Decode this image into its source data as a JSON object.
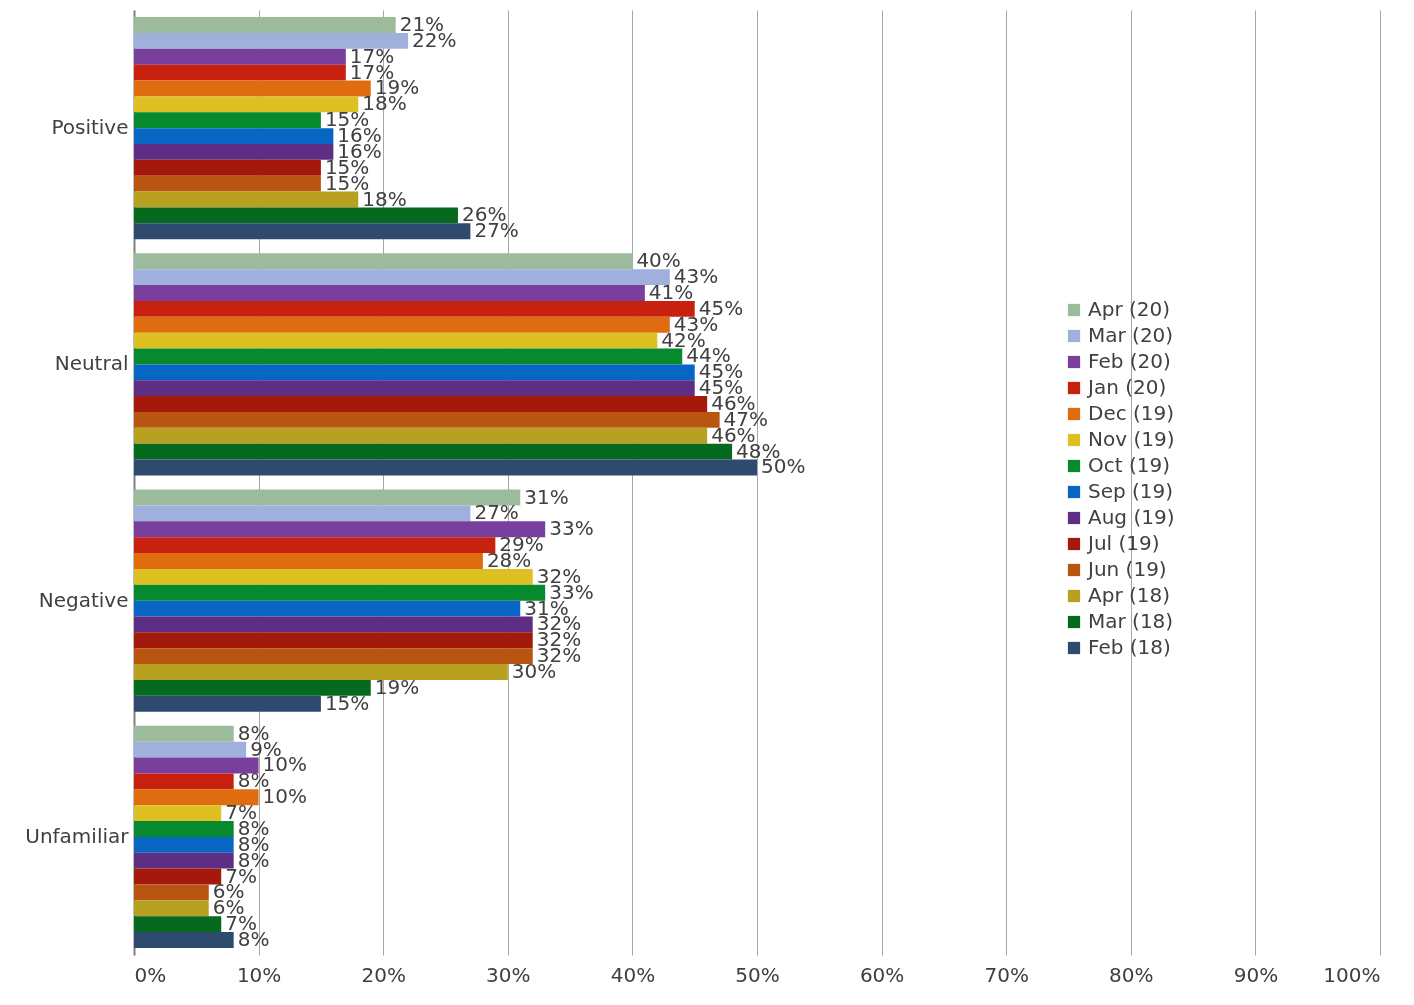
{
  "chart_data": {
    "type": "bar",
    "orientation": "horizontal",
    "categories": [
      "Positive",
      "Neutral",
      "Negative",
      "Unfamiliar"
    ],
    "xlim": [
      0,
      100
    ],
    "xticks": [
      {
        "value": 0,
        "label": "0%"
      },
      {
        "value": 10,
        "label": "10%"
      },
      {
        "value": 20,
        "label": "20%"
      },
      {
        "value": 30,
        "label": "30%"
      },
      {
        "value": 40,
        "label": "40%"
      },
      {
        "value": 50,
        "label": "50%"
      },
      {
        "value": 60,
        "label": "60%"
      },
      {
        "value": 70,
        "label": "70%"
      },
      {
        "value": 80,
        "label": "80%"
      },
      {
        "value": 90,
        "label": "90%"
      },
      {
        "value": 100,
        "label": "100%"
      }
    ],
    "grid": "x",
    "legend": "right",
    "series": [
      {
        "name": "Apr (20)",
        "color": "#9bbb9b",
        "values": [
          21,
          40,
          31,
          8
        ],
        "value_labels": [
          "21%",
          "40%",
          "31%",
          "8%"
        ]
      },
      {
        "name": "Mar (20)",
        "color": "#9fb0dc",
        "values": [
          22,
          43,
          27,
          9
        ],
        "value_labels": [
          "22%",
          "43%",
          "27%",
          "9%"
        ]
      },
      {
        "name": "Feb (20)",
        "color": "#7a3f9d",
        "values": [
          17,
          41,
          33,
          10
        ],
        "value_labels": [
          "17%",
          "41%",
          "33%",
          "10%"
        ]
      },
      {
        "name": "Jan (20)",
        "color": "#c9210f",
        "values": [
          17,
          45,
          29,
          8
        ],
        "value_labels": [
          "17%",
          "45%",
          "29%",
          "8%"
        ]
      },
      {
        "name": "Dec (19)",
        "color": "#e06c10",
        "values": [
          19,
          43,
          28,
          10
        ],
        "value_labels": [
          "19%",
          "43%",
          "28%",
          "10%"
        ]
      },
      {
        "name": "Nov (19)",
        "color": "#dfc022",
        "values": [
          18,
          42,
          32,
          7
        ],
        "value_labels": [
          "18%",
          "42%",
          "32%",
          "7%"
        ]
      },
      {
        "name": "Oct (19)",
        "color": "#078a2e",
        "values": [
          15,
          44,
          33,
          8
        ],
        "value_labels": [
          "15%",
          "44%",
          "33%",
          "8%"
        ]
      },
      {
        "name": "Sep (19)",
        "color": "#0765c4",
        "values": [
          16,
          45,
          31,
          8
        ],
        "value_labels": [
          "16%",
          "45%",
          "31%",
          "8%"
        ]
      },
      {
        "name": "Aug (19)",
        "color": "#5e2d84",
        "values": [
          16,
          45,
          32,
          8
        ],
        "value_labels": [
          "16%",
          "45%",
          "32%",
          "8%"
        ]
      },
      {
        "name": "Jul (19)",
        "color": "#a5190d",
        "values": [
          15,
          46,
          32,
          7
        ],
        "value_labels": [
          "15%",
          "46%",
          "32%",
          "7%"
        ]
      },
      {
        "name": "Jun (19)",
        "color": "#b85510",
        "values": [
          15,
          47,
          32,
          6
        ],
        "value_labels": [
          "15%",
          "47%",
          "32%",
          "6%"
        ]
      },
      {
        "name": "Apr (18)",
        "color": "#b8a020",
        "values": [
          18,
          46,
          30,
          6
        ],
        "value_labels": [
          "18%",
          "46%",
          "30%",
          "6%"
        ]
      },
      {
        "name": "Mar (18)",
        "color": "#05691e",
        "values": [
          26,
          48,
          19,
          7
        ],
        "value_labels": [
          "26%",
          "48%",
          "19%",
          "7%"
        ]
      },
      {
        "name": "Feb (18)",
        "color": "#2e4a6e",
        "values": [
          27,
          50,
          15,
          8
        ],
        "value_labels": [
          "27%",
          "50%",
          "15%",
          "8%"
        ]
      }
    ]
  }
}
